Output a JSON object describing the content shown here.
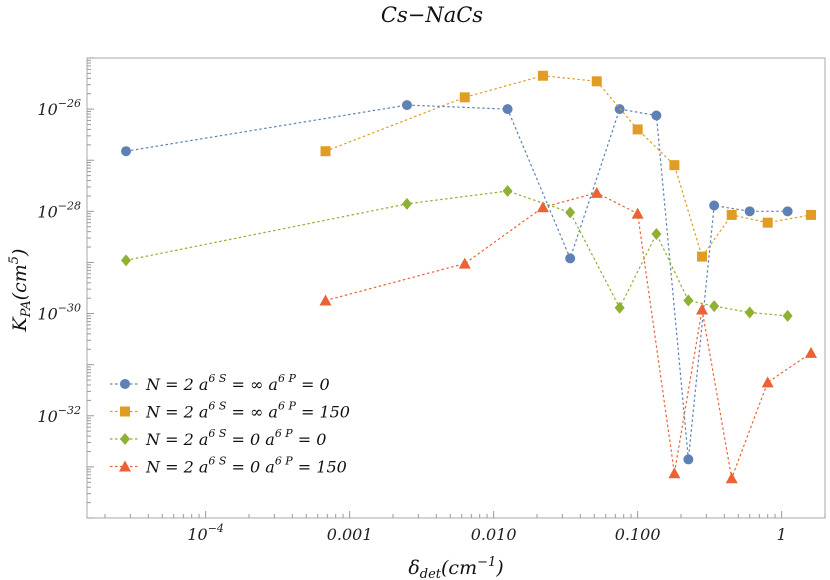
{
  "chart_data": {
    "type": "line",
    "title": "Cs−NaCs",
    "xlabel": {
      "base": "δ",
      "sub": "det",
      "rest": "(cm",
      "sup": "−1",
      "close": ")"
    },
    "ylabel": {
      "base": "K",
      "sub": "PA",
      "rest": "(cm",
      "sup": "5",
      "close": ")"
    },
    "x_scale": "log",
    "y_scale": "log",
    "xlim": [
      1.5e-05,
      2.0
    ],
    "ylim": [
      1e-34,
      1e-25
    ],
    "x_ticks": [
      {
        "value": 0.0001,
        "label": "10",
        "sup": "−4"
      },
      {
        "value": 0.001,
        "label": "0.001",
        "sup": ""
      },
      {
        "value": 0.01,
        "label": "0.010",
        "sup": ""
      },
      {
        "value": 0.1,
        "label": "0.100",
        "sup": ""
      },
      {
        "value": 1,
        "label": "1",
        "sup": ""
      }
    ],
    "y_ticks": [
      {
        "value": 1e-26,
        "label": "10",
        "sup": "−26"
      },
      {
        "value": 1e-28,
        "label": "10",
        "sup": "−28"
      },
      {
        "value": 1e-30,
        "label": "10",
        "sup": "−30"
      },
      {
        "value": 1e-32,
        "label": "10",
        "sup": "−32"
      }
    ],
    "legend_position": "lower-left",
    "series": [
      {
        "name": "N = 2 a6S = ∞ a6P = 0",
        "legend": {
          "a": "N = 2 a",
          "s1": "6 S",
          "b": " = ∞ a",
          "s2": "6 P",
          "c": " = 0"
        },
        "color": "#5e81b5",
        "marker": "circle",
        "x": [
          2.8e-05,
          0.0025,
          0.0125,
          0.034,
          0.075,
          0.135,
          0.225,
          0.34,
          0.6,
          1.1
        ],
        "y": [
          1.5e-27,
          1.2e-26,
          1e-26,
          1.2e-29,
          1e-26,
          7.5e-27,
          1.4e-33,
          1.3e-28,
          1e-28,
          1e-28
        ]
      },
      {
        "name": "N = 2 a6S = ∞ a6P = 150",
        "legend": {
          "a": "N = 2 a",
          "s1": "6 S",
          "b": " = ∞ a",
          "s2": "6 P",
          "c": " = 150"
        },
        "color": "#e19c24",
        "marker": "square",
        "x": [
          0.00068,
          0.0063,
          0.022,
          0.052,
          0.1,
          0.18,
          0.28,
          0.45,
          0.8,
          1.6
        ],
        "y": [
          1.5e-27,
          1.7e-26,
          4.5e-26,
          3.5e-26,
          4e-27,
          8e-28,
          1.3e-29,
          8.5e-29,
          6e-29,
          8.5e-29
        ]
      },
      {
        "name": "N = 2 a6S = 0 a6P = 0",
        "legend": {
          "a": "N = 2 a",
          "s1": "6 S",
          "b": " = 0 a",
          "s2": "6 P",
          "c": " = 0"
        },
        "color": "#8fb032",
        "marker": "diamond",
        "x": [
          2.8e-05,
          0.0025,
          0.0125,
          0.034,
          0.075,
          0.135,
          0.225,
          0.34,
          0.6,
          1.1
        ],
        "y": [
          1.1e-29,
          1.4e-28,
          2.5e-28,
          9.5e-29,
          1.3e-30,
          3.6e-29,
          1.8e-30,
          1.4e-30,
          1.05e-30,
          9e-31
        ]
      },
      {
        "name": "N = 2 a6S = 0 a6P = 150",
        "legend": {
          "a": "N = 2 a",
          "s1": "6 S",
          "b": " = 0 a",
          "s2": "6 P",
          "c": " = 150"
        },
        "color": "#eb6235",
        "marker": "triangle",
        "x": [
          0.00068,
          0.0063,
          0.022,
          0.052,
          0.1,
          0.18,
          0.28,
          0.45,
          0.8,
          1.6
        ],
        "y": [
          1.8e-30,
          9.5e-30,
          1.2e-28,
          2.3e-28,
          9e-29,
          7.5e-34,
          1.2e-30,
          6e-34,
          4.5e-32,
          1.7e-31
        ]
      }
    ]
  }
}
